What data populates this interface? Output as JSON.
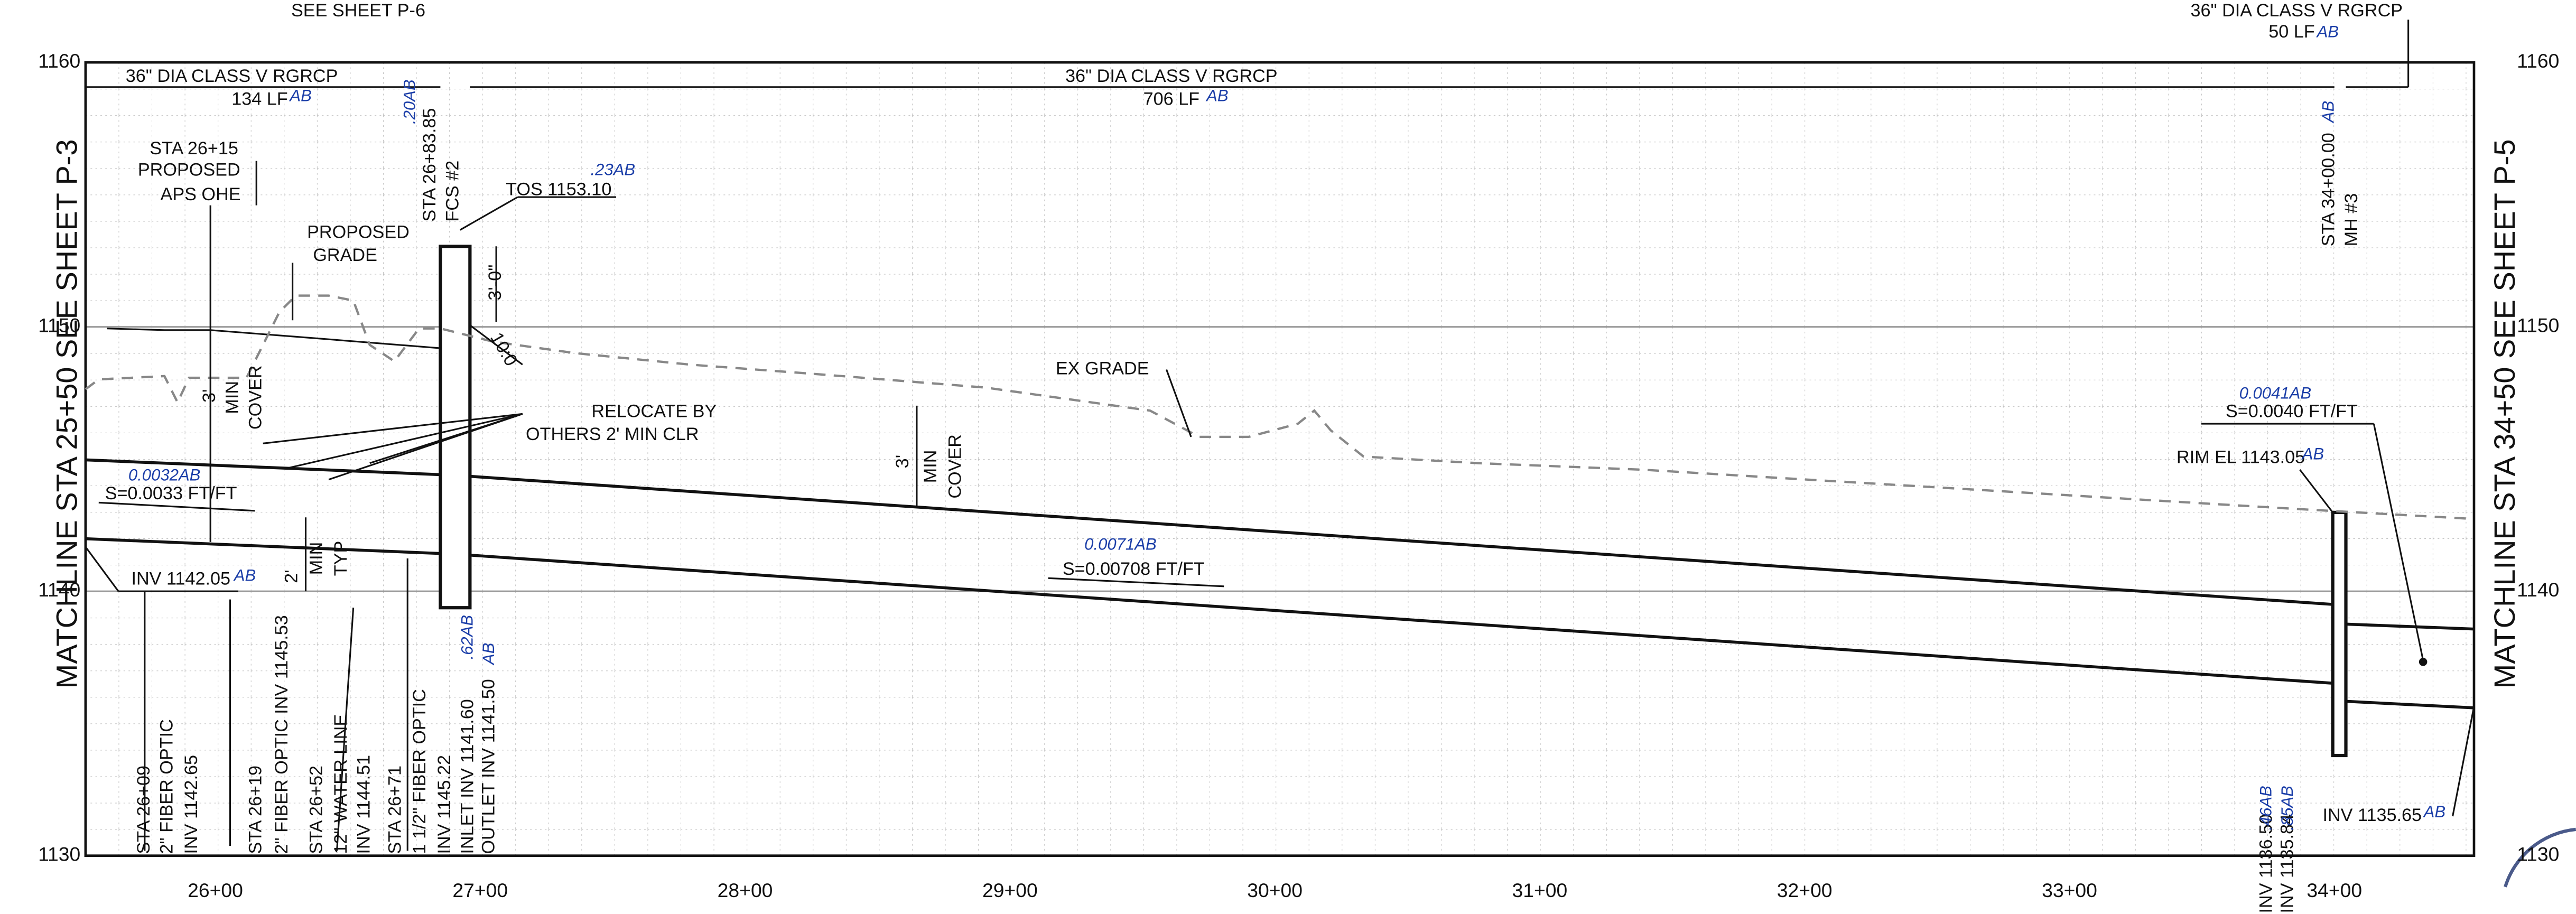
{
  "matchlines": {
    "left": "MATCHLINE  STA 25+50  SEE SHEET P-3",
    "right": "MATCHLINE  STA 34+50  SEE SHEET P-5"
  },
  "elevation_labels": [
    "1160",
    "1150",
    "1140",
    "1130"
  ],
  "station_labels": [
    "26+00",
    "27+00",
    "28+00",
    "29+00",
    "30+00",
    "31+00",
    "32+00",
    "33+00",
    "34+00"
  ],
  "annotations": [
    "SEE SHEET P-6",
    "36\" DIA CLASS V RGRCP",
    "50 LF",
    "AB",
    "36\" DIA CLASS V RGRCP",
    "134 LF",
    "AB",
    "36\" DIA CLASS V RGRCP",
    "706 LF",
    "AB",
    "STA 26+15",
    "PROPOSED",
    "APS OHE",
    "PROPOSED",
    "GRADE",
    "STA 26+83.85",
    "FCS #2",
    ".20AB",
    "TOS 1153.10",
    ".23AB",
    "3'-0\"",
    "10:0",
    "EX GRADE",
    "RELOCATE BY",
    "OTHERS 2' MIN CLR",
    "3'",
    "MIN",
    "COVER",
    "3'",
    "MIN",
    "COVER",
    "0.0032AB",
    "S=0.0033 FT/FT",
    "0.0071AB",
    "S=0.00708 FT/FT",
    "INV 1142.05",
    "AB",
    "2'",
    "MIN",
    "TYP",
    "STA 26+09",
    "2\" FIBER OPTIC",
    "INV 1142.65",
    "STA 26+19",
    "2\" FIBER OPTIC INV 1145.53",
    "STA 26+52",
    "12\" WATER LINE",
    "INV 1144.51",
    "STA 26+71",
    "1 1/2\" FIBER OPTIC",
    "INV 1145.22",
    "INLET INV 1141.60",
    "OUTLET INV 1141.50",
    ".62AB",
    "AB",
    "STA 34+00.00",
    "MH #3",
    "AB",
    "0.0041AB",
    "S=0.0040 FT/FT",
    "RIM EL 1143.05",
    "AB",
    "INV 1136.50",
    "INV 1135.84",
    ".46AB",
    ".85AB",
    "INV 1135.65",
    "AB"
  ]
}
